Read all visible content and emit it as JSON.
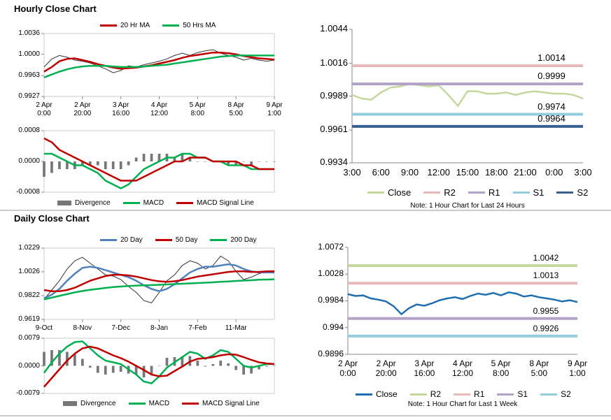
{
  "chart_data": [
    {
      "type": "line",
      "title": "Hourly Close Chart",
      "categories": [
        "2 Apr\n0:00",
        null,
        null,
        null,
        null,
        "2 Apr\n20:00",
        null,
        null,
        null,
        null,
        "3 Apr\n16:00",
        null,
        null,
        null,
        null,
        "4 Apr\n12:00",
        null,
        null,
        null,
        null,
        "5 Apr\n8:00",
        null,
        null,
        null,
        null,
        "8 Apr\n5:00",
        null,
        null,
        null,
        null,
        "9 Apr\n1:00"
      ],
      "series": [
        {
          "color": "#333333",
          "values": [
            0.9978,
            0.9992,
            0.9998,
            0.9995,
            0.999,
            0.9988,
            0.9985,
            0.998,
            0.9975,
            0.9968,
            0.9972,
            0.998,
            0.9978,
            0.9982,
            0.9985,
            0.9988,
            0.9992,
            0.9998,
            1.0002,
            0.9998,
            1.0003,
            1.0006,
            1.0008,
            1.0002,
            0.9998,
            0.9995,
            0.999,
            0.9993,
            0.999,
            0.9988,
            0.999
          ]
        },
        {
          "name": "20 Hr MA",
          "color": "#c00000",
          "values": [
            0.997,
            0.9978,
            0.9988,
            0.9992,
            0.9993,
            0.999,
            0.9987,
            0.9983,
            0.998,
            0.9977,
            0.9975,
            0.9976,
            0.9977,
            0.9979,
            0.9981,
            0.9984,
            0.9987,
            0.999,
            0.9994,
            0.9997,
            0.9999,
            1.0001,
            1.0003,
            1.0003,
            1.0002,
            1.0,
            0.9997,
            0.9995,
            0.9993,
            0.9992,
            0.9991
          ]
        },
        {
          "name": "50 Hrs MA",
          "color": "#00b050",
          "values": [
            0.996,
            0.9965,
            0.997,
            0.9974,
            0.9977,
            0.9979,
            0.998,
            0.998,
            0.998,
            0.9979,
            0.9978,
            0.9978,
            0.9978,
            0.9979,
            0.998,
            0.9981,
            0.9982,
            0.9984,
            0.9986,
            0.9988,
            0.999,
            0.9992,
            0.9994,
            0.9996,
            0.9997,
            0.9998,
            0.9998,
            0.9998,
            0.9998,
            0.9998,
            0.9998
          ]
        }
      ],
      "ylim": [
        0.9927,
        1.0036
      ],
      "yticks": [
        1.0036,
        {
          "value": 1,
          "label": "1.0000"
        },
        0.9963,
        0.9927
      ],
      "legend": "top"
    },
    {
      "type": "combo",
      "categories": [
        null,
        null,
        null,
        null,
        null,
        null,
        null,
        null,
        null,
        null,
        null,
        null,
        null,
        null,
        null,
        null,
        null,
        null,
        null,
        null,
        null,
        null,
        null,
        null,
        null,
        null,
        null,
        null,
        null,
        null,
        null
      ],
      "series": [
        {
          "name": "Divergence",
          "style": "bar",
          "color": "#777777",
          "values": [
            -0.0004,
            -0.0003,
            -0.0002,
            -0.0002,
            -0.0002,
            -0.0001,
            -0.0001,
            -0.0001,
            -0.0002,
            -0.0002,
            -0.0002,
            -0.0001,
            0.0001,
            0.0002,
            0.0002,
            0.0002,
            0.0002,
            0.0001,
            0.0002,
            0.0001,
            0,
            0,
            0,
            0,
            -0.0001,
            -0.0001,
            0,
            -0.0001,
            0,
            0,
            0
          ]
        },
        {
          "name": "MACD",
          "color": "#00b050",
          "values": [
            0.0002,
            0.0002,
            0.0001,
            0,
            -0.0001,
            -0.0001,
            -0.0002,
            -0.0003,
            -0.0005,
            -0.0006,
            -0.0007,
            -0.0006,
            -0.0004,
            -0.0002,
            -0.0001,
            0,
            0.0001,
            0.0001,
            0.0002,
            0.0002,
            0.0001,
            0.0001,
            0,
            0,
            -0.0001,
            -0.0001,
            -0.0001,
            -0.0002,
            -0.0002,
            -0.0002,
            -0.0002
          ]
        },
        {
          "name": "MACD Signal Line",
          "color": "#c00000",
          "values": [
            0.0006,
            0.0005,
            0.0003,
            0.0002,
            0.0001,
            0,
            -0.0001,
            -0.0002,
            -0.0003,
            -0.0004,
            -0.0005,
            -0.0005,
            -0.0005,
            -0.0004,
            -0.0003,
            -0.0002,
            -0.0001,
            0,
            0,
            0.0001,
            0.0001,
            0.0001,
            0,
            0,
            0,
            0,
            -0.0001,
            -0.0001,
            -0.0002,
            -0.0002,
            -0.0002
          ]
        }
      ],
      "ylim": [
        -0.0008,
        0.0008
      ],
      "yticks": [
        0.0008,
        {
          "value": 0,
          "label": "0.0000"
        },
        -0.0008
      ],
      "legend": "bottom"
    },
    {
      "type": "line",
      "categories": [
        "3:00",
        null,
        null,
        "6:00",
        null,
        null,
        "9:00",
        null,
        null,
        "12:00",
        null,
        null,
        "15:00",
        null,
        null,
        "18:00",
        null,
        null,
        "21:00",
        null,
        null,
        "0:00",
        null,
        null,
        "3:00"
      ],
      "series": [
        {
          "name": "Close",
          "color": "#c4d79b",
          "values": [
            0.999,
            0.9987,
            0.9986,
            0.9992,
            0.9996,
            0.9997,
            0.9999,
            0.9998,
            0.9997,
            0.9998,
            0.999,
            0.9981,
            0.9993,
            0.9993,
            0.9991,
            0.9991,
            0.9992,
            0.999,
            0.9992,
            0.9993,
            0.9992,
            0.9991,
            0.9991,
            0.999,
            0.9987
          ]
        },
        {
          "name": "R2",
          "color": "#e6b9b8",
          "value": 1.0014
        },
        {
          "name": "R1",
          "color": "#b3a2c7",
          "value": 0.9999
        },
        {
          "name": "S1",
          "color": "#93cddd",
          "value": 0.9974
        },
        {
          "name": "S2",
          "color": "#376092",
          "value": 0.9964
        }
      ],
      "ylim": [
        0.9934,
        1.0044
      ],
      "yticks": [
        1.0044,
        1.0016,
        0.9989,
        0.9961,
        0.9934
      ],
      "legend": "bottom",
      "note": "Note: 1 Hour Chart for Last 24 Hours"
    },
    {
      "type": "line",
      "title": "Daily Close Chart",
      "categories": [
        "9-Oct",
        null,
        null,
        null,
        null,
        "8-Nov",
        null,
        null,
        null,
        null,
        "7-Dec",
        null,
        null,
        null,
        null,
        "8-Jan",
        null,
        null,
        null,
        null,
        "7-Feb",
        null,
        null,
        null,
        null,
        "11-Mar",
        null,
        null,
        null,
        null,
        null
      ],
      "series": [
        {
          "color": "#333333",
          "values": [
            0.979,
            0.987,
            0.995,
            1.005,
            1.012,
            1.015,
            1.01,
            1.005,
            1.0,
            0.999,
            0.996,
            0.99,
            0.985,
            0.978,
            0.976,
            0.985,
            0.995,
            1.0,
            1.008,
            1.012,
            1.01,
            1.005,
            1.008,
            1.016,
            1.012,
            1.003,
            0.996,
            0.998,
            1.001,
            1.003,
            1.002
          ]
        },
        {
          "name": "20 Day",
          "color": "#4f81bd",
          "values": [
            0.98,
            0.983,
            0.988,
            0.995,
            1.001,
            1.006,
            1.007,
            1.006,
            1.004,
            1.002,
            1.0,
            0.998,
            0.995,
            0.991,
            0.988,
            0.986,
            0.988,
            0.992,
            0.997,
            1.002,
            1.005,
            1.007,
            1.007,
            1.008,
            1.009,
            1.008,
            1.005,
            1.003,
            1.002,
            1.002,
            1.002
          ]
        },
        {
          "name": "50 Day",
          "color": "#c00000",
          "values": [
            0.987,
            0.986,
            0.986,
            0.987,
            0.989,
            0.992,
            0.995,
            0.997,
            0.999,
            1.0,
            1.0,
            0.9995,
            0.9985,
            0.997,
            0.9955,
            0.9945,
            0.994,
            0.9945,
            0.9955,
            0.997,
            0.9985,
            0.9995,
            1.0005,
            1.0015,
            1.0025,
            1.003,
            1.003,
            1.0025,
            1.0025,
            1.003,
            1.003
          ]
        },
        {
          "name": "200 Day",
          "color": "#00b050",
          "values": [
            0.979,
            0.9805,
            0.982,
            0.9835,
            0.985,
            0.9862,
            0.9872,
            0.988,
            0.9888,
            0.9895,
            0.99,
            0.9904,
            0.9907,
            0.991,
            0.9912,
            0.9915,
            0.9918,
            0.9921,
            0.9924,
            0.9927,
            0.993,
            0.9933,
            0.9936,
            0.994,
            0.9944,
            0.9948,
            0.9951,
            0.9954,
            0.9958,
            0.996,
            0.9962
          ]
        }
      ],
      "ylim": [
        0.9619,
        1.0229
      ],
      "yticks": [
        1.0229,
        1.0026,
        0.9822,
        0.9619
      ],
      "legend": "top"
    },
    {
      "type": "combo",
      "categories": [
        null,
        null,
        null,
        null,
        null,
        null,
        null,
        null,
        null,
        null,
        null,
        null,
        null,
        null,
        null,
        null,
        null,
        null,
        null,
        null,
        null,
        null,
        null,
        null,
        null,
        null,
        null,
        null,
        null,
        null,
        null
      ],
      "series": [
        {
          "name": "Divergence",
          "style": "bar",
          "color": "#777777",
          "values": [
            0.004,
            0.0045,
            0.0045,
            0.004,
            0.0033,
            0.002,
            -0.0005,
            -0.002,
            -0.0025,
            -0.002,
            -0.0017,
            -0.0022,
            -0.0025,
            -0.0033,
            -0.0025,
            0,
            0.0023,
            0.0025,
            0.0027,
            0.0028,
            0.0015,
            -0.0002,
            0.0005,
            0.0015,
            0.0007,
            -0.0012,
            -0.0025,
            -0.0022,
            -0.001,
            -0.0002,
            0
          ]
        },
        {
          "name": "MACD",
          "color": "#00b050",
          "values": [
            -0.002,
            0.001,
            0.0035,
            0.0055,
            0.0068,
            0.007,
            0.005,
            0.003,
            0.0015,
            0.001,
            0.0005,
            -0.001,
            -0.0025,
            -0.0045,
            -0.005,
            -0.003,
            -0.0005,
            0.001,
            0.0025,
            0.004,
            0.0035,
            0.002,
            0.003,
            0.0045,
            0.004,
            0.002,
            0,
            -0.0005,
            0,
            0.0005,
            0.0005
          ]
        },
        {
          "name": "MACD Signal Line",
          "color": "#c00000",
          "values": [
            -0.006,
            -0.0035,
            -0.001,
            0.0015,
            0.0035,
            0.005,
            0.0055,
            0.005,
            0.004,
            0.003,
            0.0022,
            0.0012,
            0,
            -0.0012,
            -0.0025,
            -0.003,
            -0.0028,
            -0.0015,
            -0.0002,
            0.0012,
            0.002,
            0.0022,
            0.0025,
            0.003,
            0.0033,
            0.0032,
            0.0025,
            0.0017,
            0.001,
            0.0007,
            0.0005
          ]
        }
      ],
      "ylim": [
        -0.0079,
        0.0079
      ],
      "yticks": [
        0.0079,
        {
          "value": 0,
          "label": "0.0000"
        },
        -0.0079
      ],
      "legend": "bottom"
    },
    {
      "type": "line",
      "categories": [
        "2 Apr\n0:00",
        null,
        null,
        null,
        null,
        "2 Apr\n20:00",
        null,
        null,
        null,
        null,
        "3 Apr\n16:00",
        null,
        null,
        null,
        null,
        "4 Apr\n12:00",
        null,
        null,
        null,
        null,
        "5 Apr\n8:00",
        null,
        null,
        null,
        null,
        "8 Apr\n5:00",
        null,
        null,
        null,
        null,
        "9 Apr\n1:00"
      ],
      "series": [
        {
          "name": "Close",
          "color": "#1f6fb0",
          "values": [
            0.9995,
            0.9992,
            0.9993,
            0.9988,
            0.9986,
            0.9983,
            0.9975,
            0.9962,
            0.9972,
            0.9978,
            0.9976,
            0.998,
            0.9985,
            0.9988,
            0.999,
            0.9987,
            0.9992,
            0.9996,
            0.9994,
            0.9997,
            0.9993,
            0.9998,
            0.9996,
            0.9991,
            0.9993,
            0.999,
            0.9988,
            0.9986,
            0.9983,
            0.9985,
            0.9982
          ]
        },
        {
          "name": "R2",
          "color": "#c4d79b",
          "value": 1.0042
        },
        {
          "name": "R1",
          "color": "#e6b9b8",
          "value": 1.0013
        },
        {
          "name": "S1",
          "color": "#b3a2c7",
          "value": 0.9955
        },
        {
          "name": "S2",
          "color": "#93cddd",
          "value": 0.9926
        }
      ],
      "ylim": [
        0.9896,
        1.0072
      ],
      "yticks": [
        1.0072,
        1.0028,
        0.9984,
        0.994,
        0.9896
      ],
      "legend": "bottom",
      "note": "Note: 1 Hour Chart for Last 1 Week"
    }
  ]
}
